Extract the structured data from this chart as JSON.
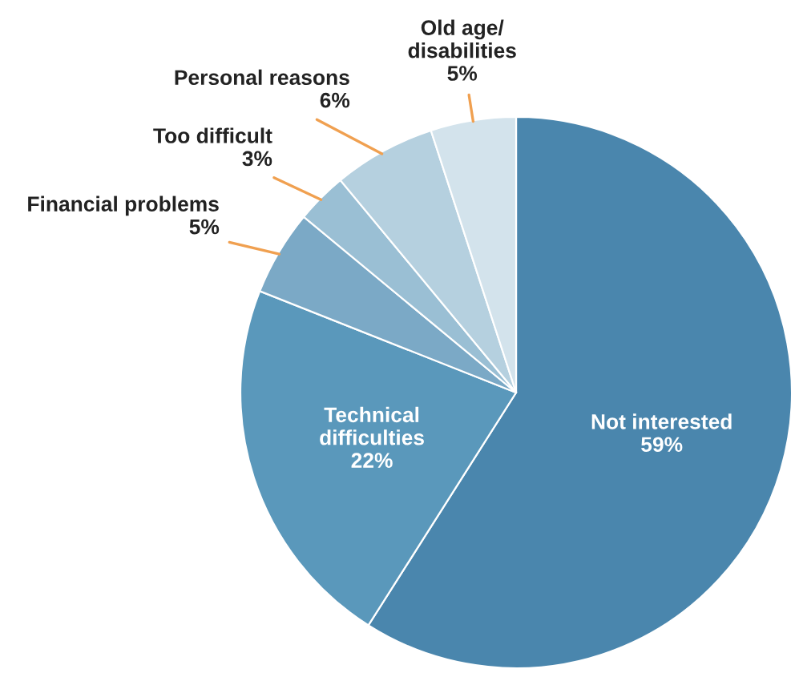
{
  "chart_data": {
    "type": "pie",
    "categories": [
      "Not interested",
      "Technical\ndifficulties",
      "Financial problems",
      "Too difficult",
      "Personal reasons",
      "Old age/\ndisabilities"
    ],
    "values": [
      59,
      22,
      5,
      3,
      6,
      5
    ],
    "value_labels": [
      "59%",
      "22%",
      "5%",
      "3%",
      "6%",
      "5%"
    ],
    "colors": [
      "#4a86ad",
      "#5a98bb",
      "#7ba9c6",
      "#9abfd4",
      "#b5d0df",
      "#d3e3ec"
    ]
  }
}
